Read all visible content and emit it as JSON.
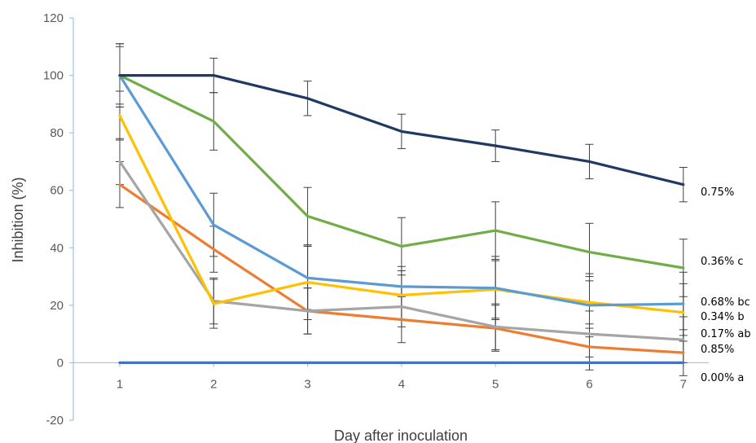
{
  "chart_data": {
    "type": "line",
    "title": "",
    "xlabel": "Day after inoculation",
    "ylabel": "Inhibition (%)",
    "x": [
      1,
      2,
      3,
      4,
      5,
      6,
      7
    ],
    "xlim": [
      1,
      7
    ],
    "ylim": [
      -20,
      120
    ],
    "yticks": [
      -20,
      0,
      20,
      40,
      60,
      80,
      100,
      120
    ],
    "grid": false,
    "legend": "none",
    "series": [
      {
        "name": "0.75%",
        "color": "#203864",
        "values": [
          100,
          100,
          92,
          80.5,
          75.5,
          70,
          62
        ],
        "errors": [
          11,
          6,
          6,
          6,
          5.5,
          6,
          6
        ]
      },
      {
        "name": "0.36% c",
        "color": "#70AD47",
        "values": [
          100,
          84,
          51,
          40.5,
          46,
          38.5,
          33
        ],
        "errors": [
          10,
          10,
          10,
          10,
          10,
          10,
          10
        ]
      },
      {
        "name": "0.68% bc",
        "color": "#5B9BD5",
        "values": [
          100,
          48,
          29.5,
          26.5,
          26,
          20,
          20.5
        ],
        "errors": [
          11,
          11,
          11,
          7,
          11,
          11,
          11
        ]
      },
      {
        "name": "0.34% b",
        "color": "#FFC000",
        "values": [
          86,
          20.5,
          28,
          23.5,
          25.5,
          21,
          17.5
        ],
        "errors": [
          8.5,
          8.5,
          13,
          8.5,
          10,
          9,
          10
        ]
      },
      {
        "name": "0.17% ab",
        "color": "#A5A5A5",
        "values": [
          70,
          21.5,
          18,
          19.5,
          12.5,
          10,
          8
        ],
        "errors": [
          8,
          8,
          8,
          7,
          8,
          8,
          8
        ]
      },
      {
        "name": "0.85%",
        "color": "#ED7D31",
        "values": [
          62,
          39.5,
          18,
          15,
          12,
          5.5,
          3.5
        ],
        "errors": [
          8,
          8,
          8,
          8,
          8,
          8,
          8
        ]
      },
      {
        "name": "0.00% a",
        "color": "#4472C4",
        "values": [
          0,
          0,
          0,
          0,
          0,
          0,
          0
        ],
        "errors": [
          0,
          0,
          0,
          0,
          0,
          0,
          0
        ]
      }
    ]
  }
}
